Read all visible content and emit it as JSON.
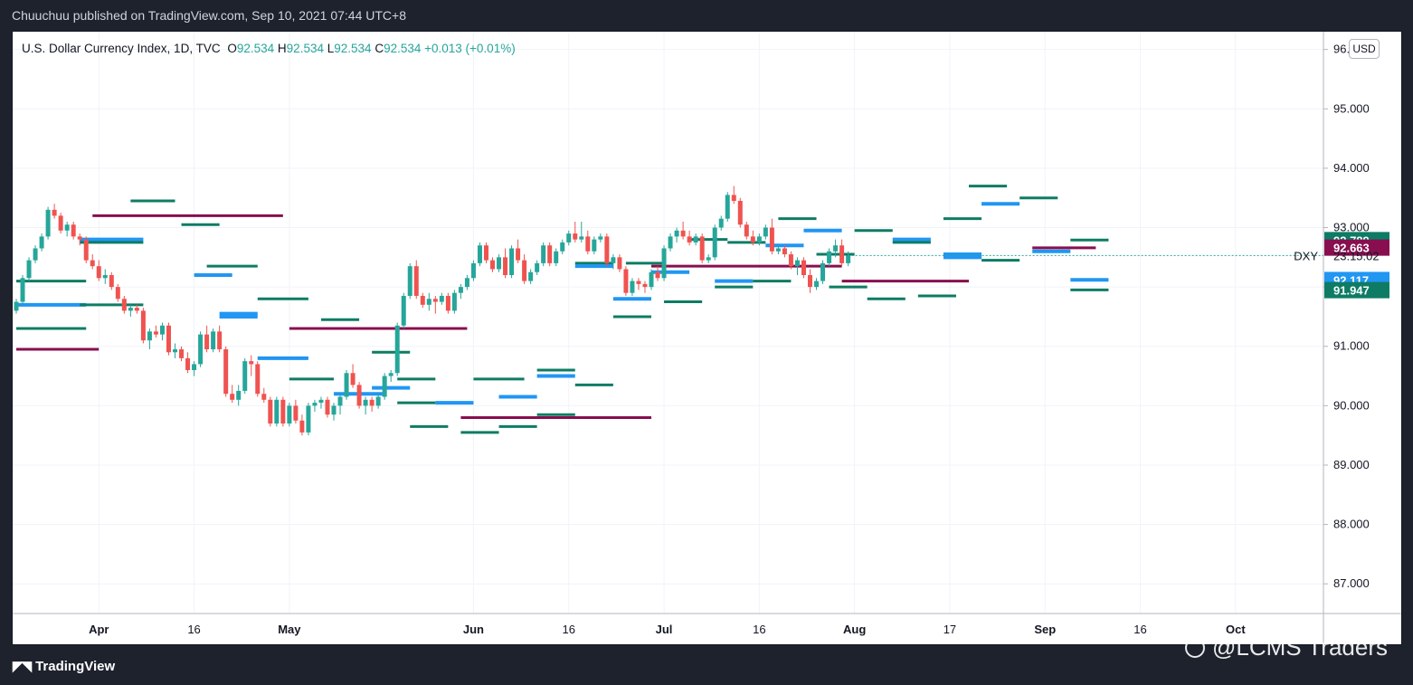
{
  "header": {
    "publisher_line": "Chuuchuu published on TradingView.com, Sep 10, 2021 07:44 UTC+8"
  },
  "legend": {
    "symbol": "U.S. Dollar Currency Index, 1D, TVC",
    "o_label": "O",
    "o_value": "92.534",
    "h_label": "H",
    "h_value": "92.534",
    "l_label": "L",
    "l_value": "92.534",
    "c_label": "C",
    "c_value": "92.534",
    "change": "+0.013 (+0.01%)"
  },
  "price_axis": {
    "currency": "USD",
    "ticker": "DXY",
    "countdown": "23:15:02",
    "ticks": [
      "96.000",
      "95.000",
      "94.000",
      "93.000",
      "92.000",
      "91.000",
      "90.000",
      "89.000",
      "88.000",
      "87.000"
    ],
    "labels": [
      {
        "value": 92.789,
        "text": "92.789",
        "color": "#0e7c64"
      },
      {
        "value": 92.663,
        "text": "92.663",
        "color": "#880e4f"
      },
      {
        "value": 92.117,
        "text": "92.117",
        "color": "#2196f3"
      },
      {
        "value": 91.947,
        "text": "91.947",
        "color": "#0e7c64"
      }
    ]
  },
  "time_axis": {
    "ticks": [
      {
        "label": "Apr",
        "bold": true
      },
      {
        "label": "16",
        "bold": false
      },
      {
        "label": "May",
        "bold": true
      },
      {
        "label": "Jun",
        "bold": true
      },
      {
        "label": "16",
        "bold": false
      },
      {
        "label": "Jul",
        "bold": true
      },
      {
        "label": "16",
        "bold": false
      },
      {
        "label": "Aug",
        "bold": true
      },
      {
        "label": "17",
        "bold": false
      },
      {
        "label": "Sep",
        "bold": true
      },
      {
        "label": "16",
        "bold": false
      },
      {
        "label": "Oct",
        "bold": true
      }
    ]
  },
  "footer": {
    "brand": "TradingView",
    "watermark": "@LCMS Traders"
  },
  "colors": {
    "up": "#26a69a",
    "down": "#ef5350",
    "level_green": "#0e7c64",
    "level_blue": "#2196f3",
    "level_maroon": "#880e4f"
  },
  "chart_data": {
    "type": "candlestick",
    "ylim": [
      86.5,
      96.3
    ],
    "candles": [
      [
        91.6,
        91.8,
        91.55,
        91.75
      ],
      [
        91.75,
        92.2,
        91.7,
        92.15
      ],
      [
        92.15,
        92.5,
        92.1,
        92.45
      ],
      [
        92.45,
        92.7,
        92.4,
        92.65
      ],
      [
        92.65,
        92.9,
        92.6,
        92.85
      ],
      [
        92.85,
        93.35,
        92.8,
        93.3
      ],
      [
        93.3,
        93.4,
        93.15,
        93.2
      ],
      [
        93.2,
        93.25,
        92.9,
        92.95
      ],
      [
        92.95,
        93.1,
        92.85,
        93.05
      ],
      [
        93.05,
        93.1,
        92.8,
        92.85
      ],
      [
        92.85,
        92.9,
        92.7,
        92.8
      ],
      [
        92.8,
        92.85,
        92.4,
        92.45
      ],
      [
        92.45,
        92.55,
        92.3,
        92.35
      ],
      [
        92.35,
        92.45,
        92.1,
        92.15
      ],
      [
        92.15,
        92.3,
        92.05,
        92.2
      ],
      [
        92.2,
        92.25,
        91.95,
        92.0
      ],
      [
        92.0,
        92.05,
        91.75,
        91.8
      ],
      [
        91.8,
        91.85,
        91.55,
        91.6
      ],
      [
        91.6,
        91.7,
        91.5,
        91.65
      ],
      [
        91.65,
        91.7,
        91.55,
        91.6
      ],
      [
        91.6,
        91.65,
        91.05,
        91.1
      ],
      [
        91.1,
        91.3,
        90.95,
        91.25
      ],
      [
        91.25,
        91.35,
        91.15,
        91.2
      ],
      [
        91.2,
        91.4,
        91.1,
        91.35
      ],
      [
        91.35,
        91.4,
        90.85,
        90.9
      ],
      [
        90.9,
        91.05,
        90.8,
        90.95
      ],
      [
        90.95,
        91.0,
        90.75,
        90.8
      ],
      [
        90.8,
        90.9,
        90.55,
        90.6
      ],
      [
        90.6,
        90.75,
        90.5,
        90.7
      ],
      [
        90.7,
        91.25,
        90.65,
        91.2
      ],
      [
        91.2,
        91.35,
        90.9,
        90.95
      ],
      [
        90.95,
        91.3,
        90.9,
        91.25
      ],
      [
        91.25,
        91.35,
        90.9,
        90.95
      ],
      [
        90.95,
        91.0,
        90.15,
        90.2
      ],
      [
        90.2,
        90.35,
        90.05,
        90.1
      ],
      [
        90.1,
        90.35,
        90.0,
        90.25
      ],
      [
        90.25,
        90.8,
        90.2,
        90.75
      ],
      [
        90.75,
        90.85,
        90.5,
        90.7
      ],
      [
        90.7,
        90.75,
        90.15,
        90.2
      ],
      [
        90.2,
        90.3,
        90.05,
        90.1
      ],
      [
        90.1,
        90.15,
        89.65,
        89.7
      ],
      [
        89.7,
        90.15,
        89.65,
        90.1
      ],
      [
        90.1,
        90.15,
        89.65,
        89.7
      ],
      [
        89.7,
        90.05,
        89.65,
        90.0
      ],
      [
        90.0,
        90.1,
        89.7,
        89.75
      ],
      [
        89.75,
        89.85,
        89.5,
        89.55
      ],
      [
        89.55,
        90.05,
        89.5,
        90.0
      ],
      [
        90.0,
        90.1,
        89.9,
        90.05
      ],
      [
        90.05,
        90.15,
        89.95,
        90.1
      ],
      [
        90.1,
        90.15,
        89.8,
        89.85
      ],
      [
        89.85,
        90.05,
        89.75,
        90.0
      ],
      [
        90.0,
        90.2,
        89.85,
        90.15
      ],
      [
        90.15,
        90.6,
        90.1,
        90.55
      ],
      [
        90.55,
        90.7,
        90.3,
        90.35
      ],
      [
        90.35,
        90.4,
        89.95,
        90.0
      ],
      [
        90.0,
        90.15,
        89.85,
        90.1
      ],
      [
        90.1,
        90.15,
        89.9,
        90.0
      ],
      [
        90.0,
        90.2,
        89.95,
        90.15
      ],
      [
        90.15,
        90.55,
        90.1,
        90.5
      ],
      [
        90.5,
        90.6,
        90.4,
        90.55
      ],
      [
        90.55,
        91.4,
        90.5,
        91.35
      ],
      [
        91.35,
        91.9,
        91.3,
        91.85
      ],
      [
        91.85,
        92.4,
        91.8,
        92.35
      ],
      [
        92.35,
        92.45,
        91.8,
        91.85
      ],
      [
        91.85,
        91.9,
        91.65,
        91.7
      ],
      [
        91.7,
        91.9,
        91.6,
        91.8
      ],
      [
        91.8,
        91.85,
        91.55,
        91.75
      ],
      [
        91.75,
        91.9,
        91.7,
        91.85
      ],
      [
        91.85,
        91.9,
        91.55,
        91.6
      ],
      [
        91.6,
        91.95,
        91.55,
        91.9
      ],
      [
        91.9,
        92.05,
        91.8,
        92.0
      ],
      [
        92.0,
        92.2,
        91.95,
        92.15
      ],
      [
        92.15,
        92.45,
        92.1,
        92.4
      ],
      [
        92.4,
        92.75,
        92.35,
        92.7
      ],
      [
        92.7,
        92.75,
        92.4,
        92.45
      ],
      [
        92.45,
        92.5,
        92.25,
        92.3
      ],
      [
        92.3,
        92.55,
        92.25,
        92.5
      ],
      [
        92.5,
        92.65,
        92.15,
        92.2
      ],
      [
        92.2,
        92.7,
        92.15,
        92.65
      ],
      [
        92.65,
        92.8,
        92.4,
        92.45
      ],
      [
        92.45,
        92.55,
        92.05,
        92.1
      ],
      [
        92.1,
        92.3,
        92.05,
        92.25
      ],
      [
        92.25,
        92.45,
        92.2,
        92.4
      ],
      [
        92.4,
        92.75,
        92.35,
        92.7
      ],
      [
        92.7,
        92.75,
        92.35,
        92.4
      ],
      [
        92.4,
        92.65,
        92.35,
        92.6
      ],
      [
        92.6,
        92.8,
        92.55,
        92.75
      ],
      [
        92.75,
        92.95,
        92.7,
        92.9
      ],
      [
        92.9,
        93.1,
        92.75,
        92.8
      ],
      [
        92.8,
        93.1,
        92.75,
        92.85
      ],
      [
        92.85,
        92.95,
        92.55,
        92.6
      ],
      [
        92.6,
        92.85,
        92.55,
        92.8
      ],
      [
        92.8,
        92.9,
        92.75,
        92.85
      ],
      [
        92.85,
        92.9,
        92.35,
        92.4
      ],
      [
        92.4,
        92.55,
        92.3,
        92.5
      ],
      [
        92.5,
        92.55,
        92.25,
        92.3
      ],
      [
        92.3,
        92.35,
        91.85,
        91.9
      ],
      [
        91.9,
        92.15,
        91.85,
        92.1
      ],
      [
        92.1,
        92.15,
        91.95,
        92.05
      ],
      [
        92.05,
        92.1,
        91.9,
        92.0
      ],
      [
        92.0,
        92.3,
        91.95,
        92.25
      ],
      [
        92.25,
        92.35,
        92.1,
        92.15
      ],
      [
        92.15,
        92.7,
        92.1,
        92.65
      ],
      [
        92.65,
        92.9,
        92.6,
        92.85
      ],
      [
        92.85,
        93.0,
        92.75,
        92.95
      ],
      [
        92.95,
        93.1,
        92.8,
        92.85
      ],
      [
        92.85,
        92.95,
        92.7,
        92.75
      ],
      [
        92.75,
        92.9,
        92.7,
        92.85
      ],
      [
        92.85,
        92.9,
        92.4,
        92.45
      ],
      [
        92.45,
        92.55,
        92.4,
        92.5
      ],
      [
        92.5,
        93.05,
        92.45,
        93.0
      ],
      [
        93.0,
        93.2,
        92.95,
        93.15
      ],
      [
        93.15,
        93.6,
        93.1,
        93.55
      ],
      [
        93.55,
        93.7,
        93.4,
        93.45
      ],
      [
        93.45,
        93.5,
        93.0,
        93.05
      ],
      [
        93.05,
        93.1,
        92.8,
        92.85
      ],
      [
        92.85,
        92.95,
        92.7,
        92.75
      ],
      [
        92.75,
        92.9,
        92.7,
        92.85
      ],
      [
        92.85,
        93.05,
        92.8,
        93.0
      ],
      [
        93.0,
        93.15,
        92.55,
        92.6
      ],
      [
        92.6,
        92.7,
        92.55,
        92.65
      ],
      [
        92.65,
        92.7,
        92.5,
        92.55
      ],
      [
        92.55,
        92.6,
        92.3,
        92.35
      ],
      [
        92.35,
        92.5,
        92.2,
        92.45
      ],
      [
        92.45,
        92.5,
        92.15,
        92.2
      ],
      [
        92.2,
        92.3,
        91.9,
        92.0
      ],
      [
        92.0,
        92.15,
        91.95,
        92.1
      ],
      [
        92.1,
        92.45,
        92.05,
        92.4
      ],
      [
        92.4,
        92.65,
        92.35,
        92.6
      ],
      [
        92.6,
        92.8,
        92.5,
        92.7
      ],
      [
        92.7,
        92.8,
        92.35,
        92.4
      ],
      [
        92.4,
        92.6,
        92.35,
        92.53
      ]
    ],
    "levels": [
      {
        "from": 0,
        "to": 11,
        "value": 91.7,
        "color": "#2196f3"
      },
      {
        "from": 0,
        "to": 11,
        "value": 91.3,
        "color": "#0e7c64"
      },
      {
        "from": 0,
        "to": 11,
        "value": 92.1,
        "color": "#0e7c64"
      },
      {
        "from": 0,
        "to": 13,
        "value": 90.95,
        "color": "#880e4f"
      },
      {
        "from": 10,
        "to": 20,
        "value": 91.7,
        "color": "#0e7c64"
      },
      {
        "from": 10,
        "to": 20,
        "value": 92.8,
        "color": "#2196f3"
      },
      {
        "from": 10,
        "to": 20,
        "value": 92.75,
        "color": "#0e7c64"
      },
      {
        "from": 12,
        "to": 42,
        "value": 93.2,
        "color": "#880e4f"
      },
      {
        "from": 18,
        "to": 25,
        "value": 93.45,
        "color": "#0e7c64"
      },
      {
        "from": 26,
        "to": 32,
        "value": 93.05,
        "color": "#0e7c64"
      },
      {
        "from": 28,
        "to": 34,
        "value": 92.2,
        "color": "#2196f3"
      },
      {
        "from": 30,
        "to": 38,
        "value": 92.35,
        "color": "#0e7c64"
      },
      {
        "from": 32,
        "to": 38,
        "value": 91.55,
        "color": "#2196f3"
      },
      {
        "from": 32,
        "to": 38,
        "value": 91.5,
        "color": "#2196f3"
      },
      {
        "from": 38,
        "to": 46,
        "value": 91.8,
        "color": "#0e7c64"
      },
      {
        "from": 38,
        "to": 46,
        "value": 90.8,
        "color": "#2196f3"
      },
      {
        "from": 43,
        "to": 71,
        "value": 91.3,
        "color": "#880e4f"
      },
      {
        "from": 43,
        "to": 50,
        "value": 90.45,
        "color": "#0e7c64"
      },
      {
        "from": 48,
        "to": 54,
        "value": 91.45,
        "color": "#0e7c64"
      },
      {
        "from": 50,
        "to": 58,
        "value": 90.2,
        "color": "#2196f3"
      },
      {
        "from": 56,
        "to": 62,
        "value": 90.9,
        "color": "#0e7c64"
      },
      {
        "from": 56,
        "to": 62,
        "value": 90.3,
        "color": "#2196f3"
      },
      {
        "from": 60,
        "to": 66,
        "value": 90.05,
        "color": "#0e7c64"
      },
      {
        "from": 60,
        "to": 66,
        "value": 90.45,
        "color": "#0e7c64"
      },
      {
        "from": 62,
        "to": 68,
        "value": 89.65,
        "color": "#0e7c64"
      },
      {
        "from": 66,
        "to": 72,
        "value": 90.05,
        "color": "#2196f3"
      },
      {
        "from": 70,
        "to": 76,
        "value": 89.55,
        "color": "#0e7c64"
      },
      {
        "from": 70,
        "to": 100,
        "value": 89.8,
        "color": "#880e4f"
      },
      {
        "from": 72,
        "to": 80,
        "value": 90.45,
        "color": "#0e7c64"
      },
      {
        "from": 76,
        "to": 82,
        "value": 90.15,
        "color": "#2196f3"
      },
      {
        "from": 76,
        "to": 82,
        "value": 89.65,
        "color": "#0e7c64"
      },
      {
        "from": 82,
        "to": 88,
        "value": 90.6,
        "color": "#0e7c64"
      },
      {
        "from": 82,
        "to": 88,
        "value": 90.5,
        "color": "#2196f3"
      },
      {
        "from": 82,
        "to": 88,
        "value": 89.85,
        "color": "#0e7c64"
      },
      {
        "from": 88,
        "to": 94,
        "value": 90.35,
        "color": "#0e7c64"
      },
      {
        "from": 88,
        "to": 94,
        "value": 92.4,
        "color": "#0e7c64"
      },
      {
        "from": 88,
        "to": 94,
        "value": 92.35,
        "color": "#2196f3"
      },
      {
        "from": 94,
        "to": 100,
        "value": 91.8,
        "color": "#2196f3"
      },
      {
        "from": 94,
        "to": 100,
        "value": 91.5,
        "color": "#0e7c64"
      },
      {
        "from": 96,
        "to": 102,
        "value": 92.4,
        "color": "#0e7c64"
      },
      {
        "from": 100,
        "to": 130,
        "value": 92.35,
        "color": "#880e4f"
      },
      {
        "from": 100,
        "to": 106,
        "value": 92.25,
        "color": "#2196f3"
      },
      {
        "from": 102,
        "to": 108,
        "value": 91.75,
        "color": "#0e7c64"
      },
      {
        "from": 106,
        "to": 112,
        "value": 92.8,
        "color": "#0e7c64"
      },
      {
        "from": 110,
        "to": 116,
        "value": 92.1,
        "color": "#2196f3"
      },
      {
        "from": 110,
        "to": 116,
        "value": 92.0,
        "color": "#0e7c64"
      },
      {
        "from": 112,
        "to": 118,
        "value": 92.75,
        "color": "#0e7c64"
      },
      {
        "from": 116,
        "to": 122,
        "value": 92.1,
        "color": "#0e7c64"
      },
      {
        "from": 118,
        "to": 124,
        "value": 92.7,
        "color": "#2196f3"
      },
      {
        "from": 120,
        "to": 126,
        "value": 93.15,
        "color": "#0e7c64"
      },
      {
        "from": 124,
        "to": 130,
        "value": 92.95,
        "color": "#2196f3"
      },
      {
        "from": 126,
        "to": 132,
        "value": 92.55,
        "color": "#0e7c64"
      },
      {
        "from": 128,
        "to": 134,
        "value": 92.0,
        "color": "#0e7c64"
      },
      {
        "from": 130,
        "to": 150,
        "value": 92.1,
        "color": "#880e4f"
      },
      {
        "from": 132,
        "to": 138,
        "value": 92.95,
        "color": "#0e7c64"
      },
      {
        "from": 134,
        "to": 140,
        "value": 91.8,
        "color": "#0e7c64"
      },
      {
        "from": 138,
        "to": 144,
        "value": 92.8,
        "color": "#2196f3"
      },
      {
        "from": 138,
        "to": 144,
        "value": 92.75,
        "color": "#0e7c64"
      },
      {
        "from": 142,
        "to": 148,
        "value": 91.85,
        "color": "#0e7c64"
      },
      {
        "from": 146,
        "to": 152,
        "value": 92.55,
        "color": "#2196f3"
      },
      {
        "from": 146,
        "to": 152,
        "value": 92.5,
        "color": "#2196f3"
      },
      {
        "from": 146,
        "to": 152,
        "value": 93.15,
        "color": "#0e7c64"
      },
      {
        "from": 150,
        "to": 156,
        "value": 93.7,
        "color": "#0e7c64"
      },
      {
        "from": 152,
        "to": 158,
        "value": 93.4,
        "color": "#2196f3"
      },
      {
        "from": 152,
        "to": 158,
        "value": 92.45,
        "color": "#0e7c64"
      },
      {
        "from": 158,
        "to": 164,
        "value": 93.5,
        "color": "#0e7c64"
      },
      {
        "from": 160,
        "to": 170,
        "value": 92.66,
        "color": "#880e4f"
      },
      {
        "from": 160,
        "to": 166,
        "value": 92.6,
        "color": "#2196f3"
      },
      {
        "from": 166,
        "to": 172,
        "value": 92.79,
        "color": "#0e7c64"
      },
      {
        "from": 166,
        "to": 172,
        "value": 92.12,
        "color": "#2196f3"
      },
      {
        "from": 166,
        "to": 172,
        "value": 91.95,
        "color": "#0e7c64"
      }
    ]
  }
}
